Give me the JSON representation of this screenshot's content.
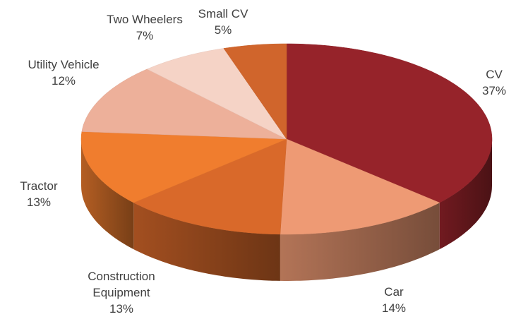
{
  "chart_data": {
    "type": "pie",
    "categories": [
      "CV",
      "Car",
      "Construction Equipment",
      "Tractor",
      "Utility Vehicle",
      "Two Wheelers",
      "Small CV"
    ],
    "values": [
      37,
      14,
      13,
      13,
      12,
      7,
      5
    ],
    "value_labels": [
      "37%",
      "14%",
      "13%",
      "13%",
      "12%",
      "7%",
      "5%"
    ],
    "colors": [
      "#96232a",
      "#ee9a74",
      "#d9692a",
      "#f07d2e",
      "#edb09a",
      "#f5d3c6",
      "#d0652c"
    ]
  }
}
